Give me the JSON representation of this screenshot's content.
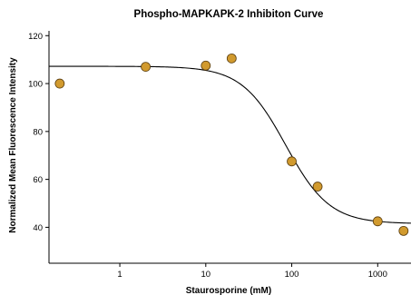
{
  "chart_data": {
    "type": "scatter",
    "title": "Phospho-MAPKAPK-2 Inhibiton Curve",
    "xlabel": "Staurosporine (mM)",
    "ylabel": "Normalized Mean Fluorescence Intensity",
    "x_scale": "log",
    "xlim": [
      0.15,
      2500
    ],
    "ylim": [
      25,
      122
    ],
    "x_ticks": [
      1,
      10,
      100,
      1000
    ],
    "x_tick_labels": [
      "1",
      "10",
      "100",
      "1000"
    ],
    "y_ticks": [
      40,
      60,
      80,
      100,
      120
    ],
    "y_tick_labels": [
      "40",
      "60",
      "80",
      "100",
      "120"
    ],
    "grid": false,
    "series": [
      {
        "points": [
          {
            "x": 0.2,
            "y": 100
          },
          {
            "x": 2,
            "y": 107
          },
          {
            "x": 10,
            "y": 107.5
          },
          {
            "x": 20,
            "y": 110.5
          },
          {
            "x": 100,
            "y": 67.5
          },
          {
            "x": 200,
            "y": 57
          },
          {
            "x": 1000,
            "y": 42.5
          },
          {
            "x": 2000,
            "y": 38.5
          }
        ],
        "color": "#d19a2e"
      }
    ],
    "fit_curve": {
      "model": "four-parameter-logistic",
      "top": 107.2,
      "bottom": 41.5,
      "ic50": 85,
      "hill_slope": 1.7
    }
  }
}
